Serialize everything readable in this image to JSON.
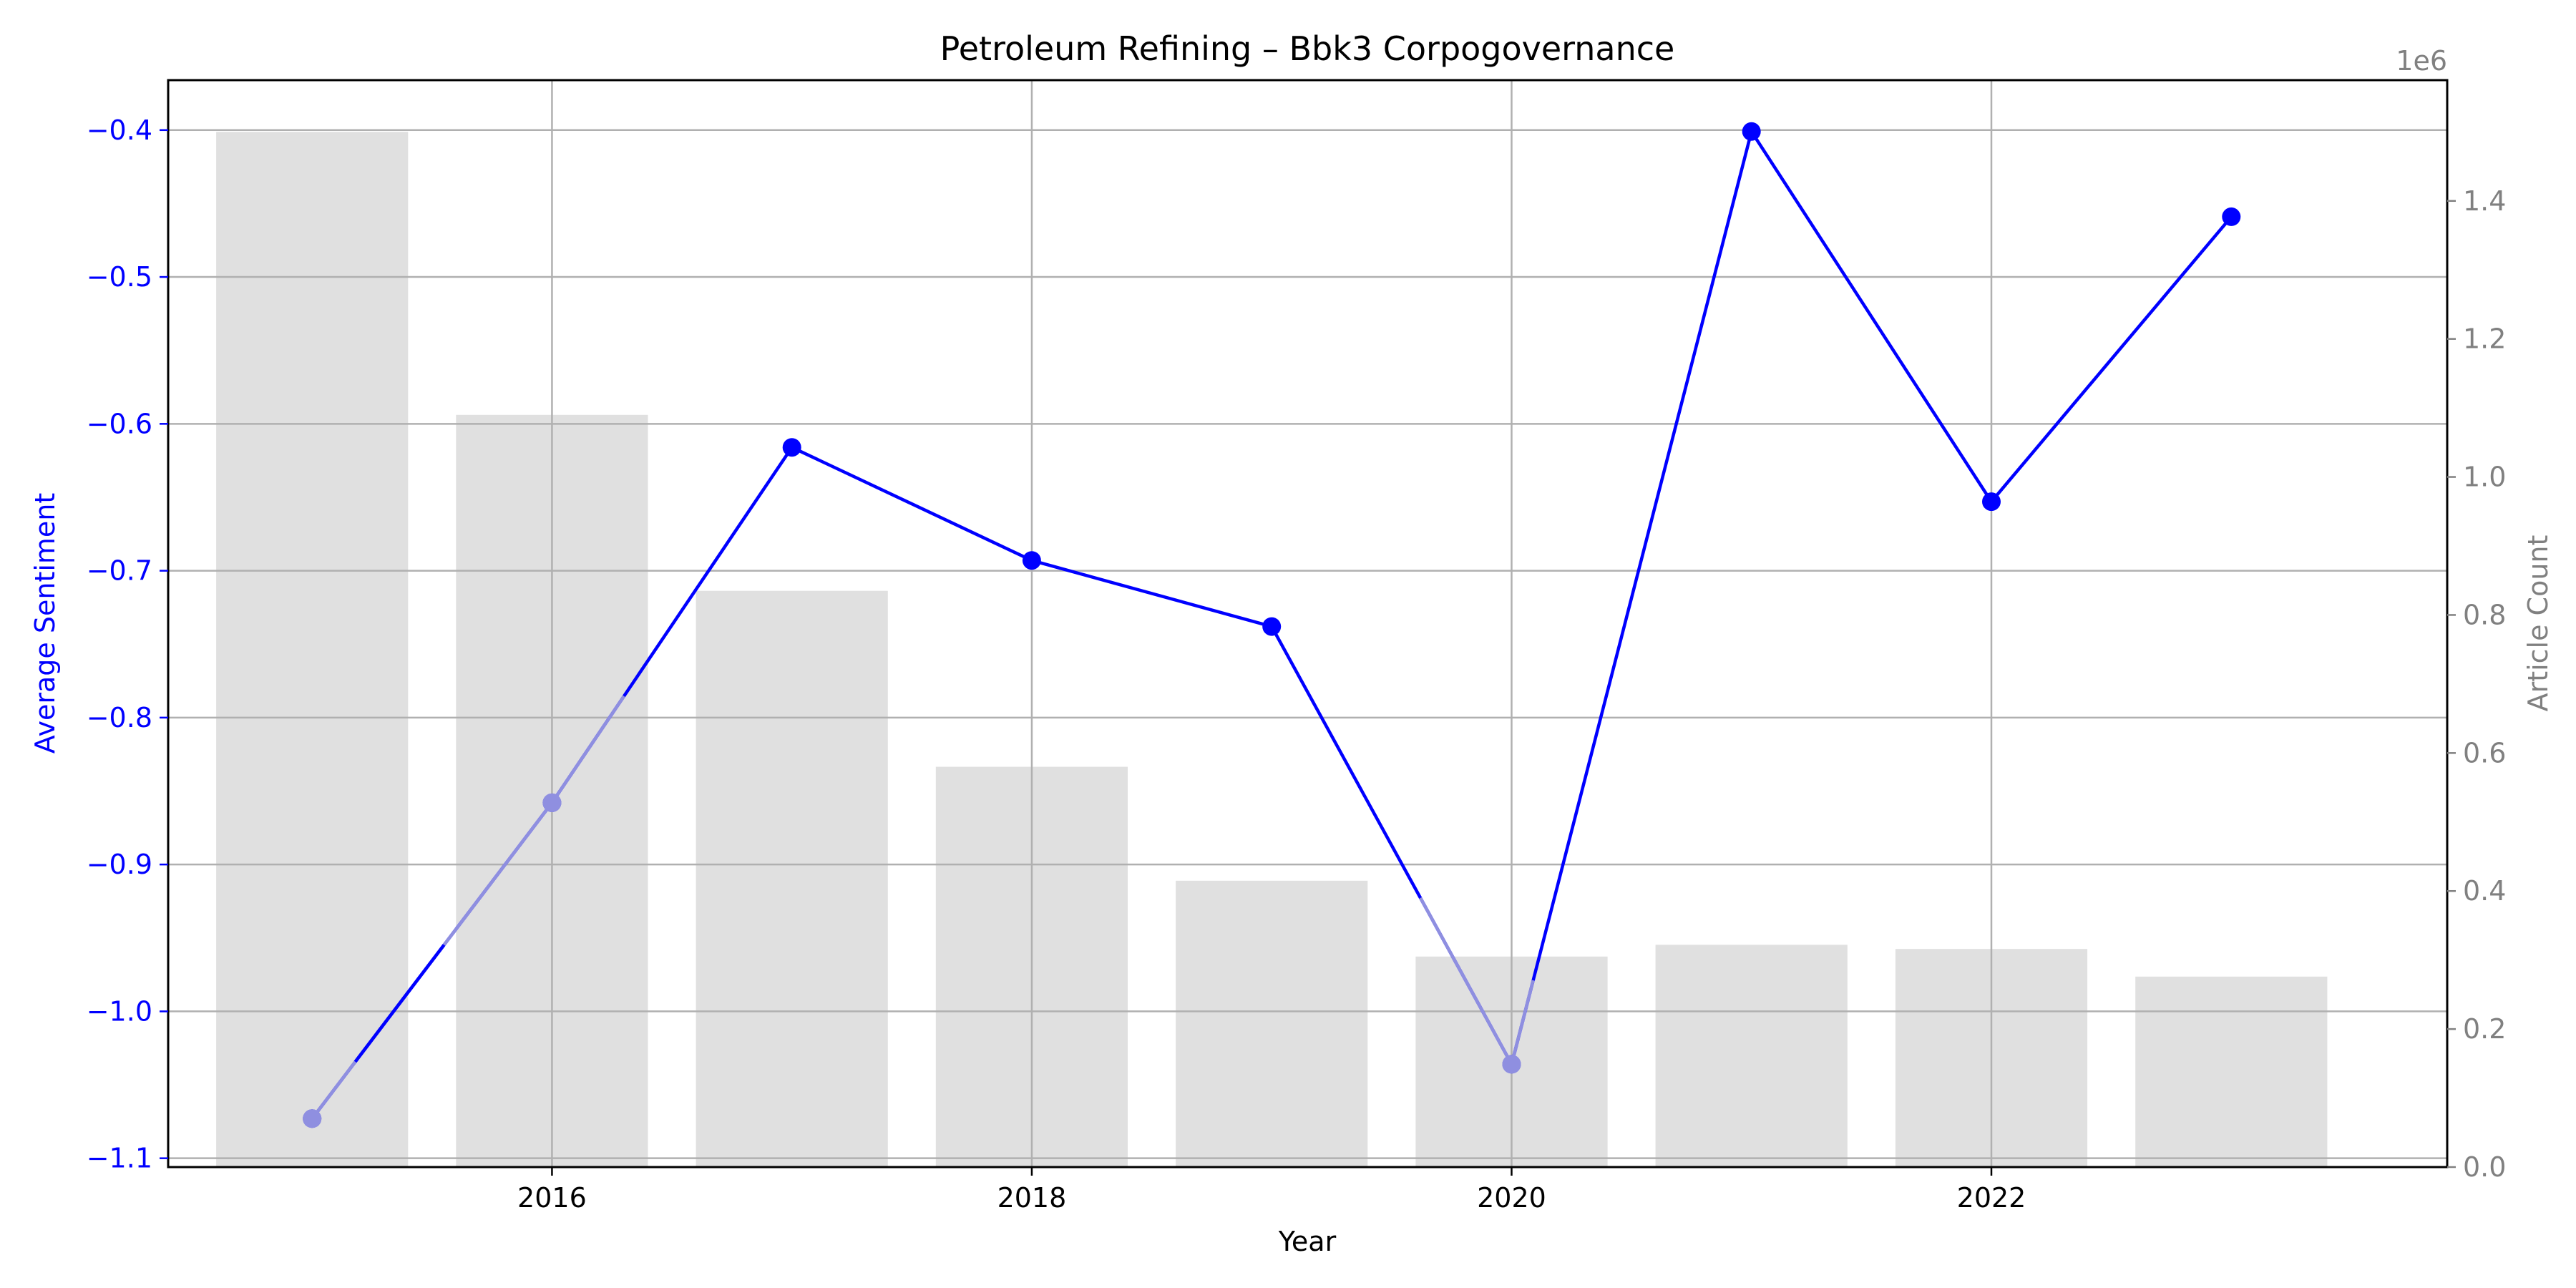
{
  "chart_data": {
    "type": "bar+line",
    "title": "Petroleum Refining – Bbk3 Corpogovernance",
    "xlabel": "Year",
    "ylabel_left": "Average Sentiment",
    "ylabel_right": "Article Count",
    "right_axis_offset_label": "1e6",
    "x": [
      2015,
      2016,
      2017,
      2018,
      2019,
      2020,
      2021,
      2022,
      2023
    ],
    "x_ticks": [
      2016,
      2018,
      2020,
      2022
    ],
    "x_tick_labels": [
      "2016",
      "2018",
      "2020",
      "2022"
    ],
    "xlim": [
      2014.4,
      2023.9
    ],
    "y_left_ticks": [
      -0.4,
      -0.5,
      -0.6,
      -0.7,
      -0.8,
      -0.9,
      -1.0,
      -1.1
    ],
    "y_left_tick_labels": [
      "−0.4",
      "−0.5",
      "−0.6",
      "−0.7",
      "−0.8",
      "−0.9",
      "−1.0",
      "−1.1"
    ],
    "ylim_left": [
      -1.106,
      -0.366
    ],
    "y_right_ticks": [
      0.0,
      0.2,
      0.4,
      0.6,
      0.8,
      1.0,
      1.2,
      1.4
    ],
    "y_right_tick_labels": [
      "0.0",
      "0.2",
      "0.4",
      "0.6",
      "0.8",
      "1.0",
      "1.2",
      "1.4"
    ],
    "ylim_right": [
      0,
      1.575
    ],
    "grid": true,
    "series": [
      {
        "kind": "bar",
        "axis": "right",
        "values": [
          1.5,
          1.09,
          0.835,
          0.58,
          0.415,
          0.305,
          0.322,
          0.316,
          0.276
        ]
      },
      {
        "kind": "line",
        "axis": "left",
        "values": [
          -1.073,
          -0.858,
          -0.616,
          -0.693,
          -0.738,
          -1.036,
          -0.401,
          -0.653,
          -0.459
        ]
      }
    ],
    "colors": {
      "line": "#0000ff",
      "line_faded": "#8f8fe0",
      "bar": "#e0e0e0",
      "grid": "#b0b0b0",
      "left_axis": "#0000ff",
      "right_axis": "#808080"
    }
  }
}
